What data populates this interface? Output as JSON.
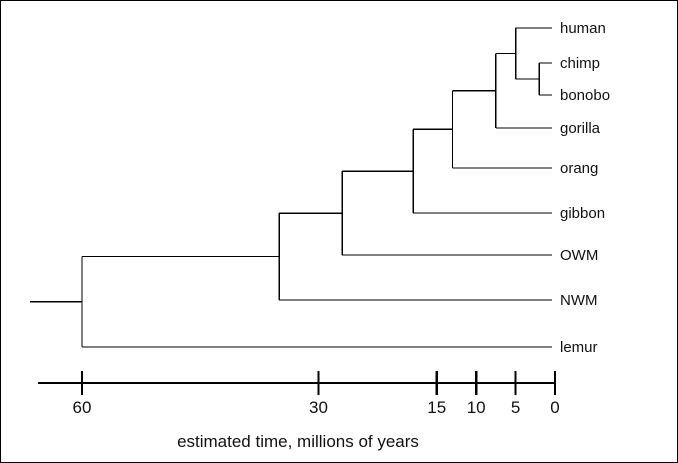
{
  "tree": {
    "taxa": [
      {
        "key": "human",
        "label": "human"
      },
      {
        "key": "chimp",
        "label": "chimp"
      },
      {
        "key": "bonobo",
        "label": "bonobo"
      },
      {
        "key": "gorilla",
        "label": "gorilla"
      },
      {
        "key": "orang",
        "label": "orang"
      },
      {
        "key": "gibbon",
        "label": "gibbon"
      },
      {
        "key": "owm",
        "label": "OWM"
      },
      {
        "key": "nwm",
        "label": "NWM"
      },
      {
        "key": "lemur",
        "label": "lemur"
      }
    ],
    "divergence_times_mya": {
      "chimp_bonobo": 2,
      "human_pan": 5,
      "gorilla": 7.5,
      "orang": 13,
      "gibbon": 18,
      "owm": 27,
      "nwm": 35,
      "lemur": 60
    }
  },
  "axis": {
    "title": "estimated time, millions of years",
    "ticks": [
      {
        "value": 60,
        "label": "60"
      },
      {
        "value": 30,
        "label": "30"
      },
      {
        "value": 15,
        "label": "15"
      },
      {
        "value": 10,
        "label": "10"
      },
      {
        "value": 5,
        "label": "5"
      },
      {
        "value": 0,
        "label": "0"
      }
    ],
    "max": 60,
    "min": 0
  }
}
